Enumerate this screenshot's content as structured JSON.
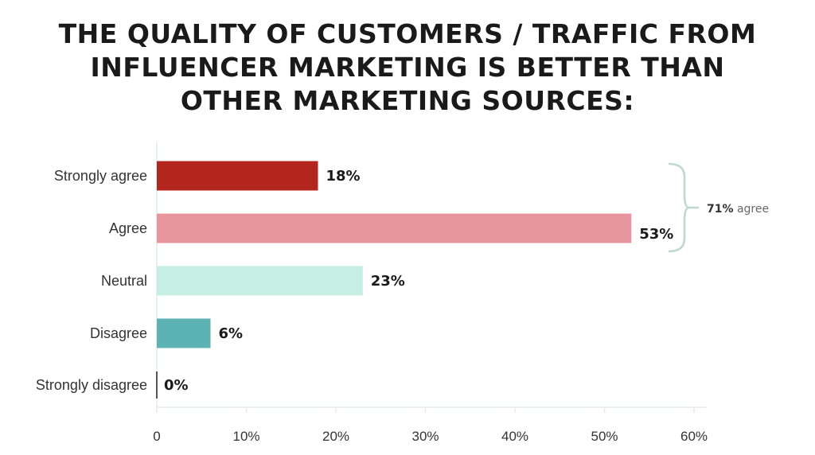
{
  "chart_data": {
    "type": "bar",
    "orientation": "horizontal",
    "title_lines": [
      "THE QUALITY OF CUSTOMERS / TRAFFIC FROM",
      "INFLUENCER MARKETING IS BETTER THAN",
      "OTHER MARKETING SOURCES:"
    ],
    "categories": [
      "Strongly agree",
      "Agree",
      "Neutral",
      "Disagree",
      "Strongly disagree"
    ],
    "values": [
      18,
      53,
      23,
      6,
      0
    ],
    "data_labels": [
      "18%",
      "53%",
      "23%",
      "6%",
      "0%"
    ],
    "colors": [
      "#b3261e",
      "#e8959d",
      "#c6eee4",
      "#5db3b4",
      "#555555"
    ],
    "xlim": [
      0,
      60
    ],
    "xticks": [
      0,
      10,
      20,
      30,
      40,
      50,
      60
    ],
    "xtick_labels": [
      "0",
      "10%",
      "20%",
      "30%",
      "40%",
      "50%",
      "60%"
    ],
    "grid": false,
    "annotation": {
      "value": "71%",
      "text": "agree",
      "groups": [
        "Strongly agree",
        "Agree"
      ],
      "color": "#bfd6d2"
    }
  }
}
